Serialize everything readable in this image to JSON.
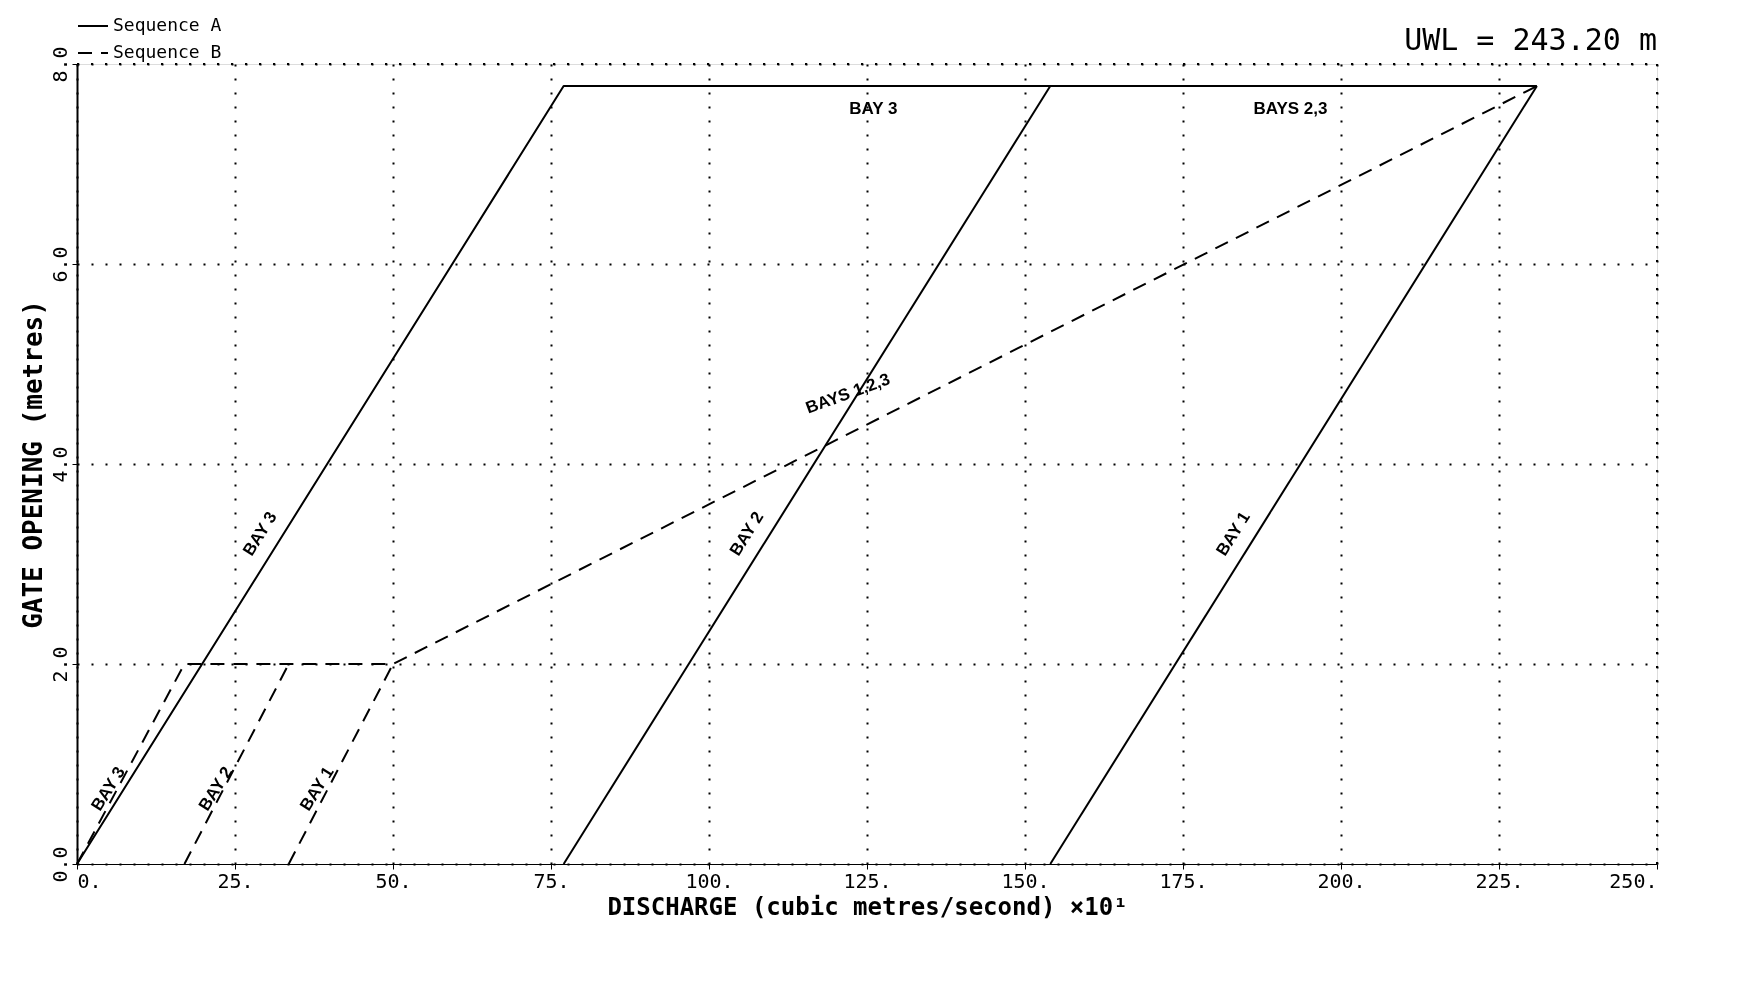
{
  "chart_data": {
    "type": "line",
    "xlabel": "DISCHARGE (cubic metres/second)  ×10¹",
    "ylabel": "GATE OPENING (metres)",
    "xlim": [
      0,
      250
    ],
    "ylim": [
      0,
      8
    ],
    "xticks": [
      {
        "value": 0,
        "label": "0."
      },
      {
        "value": 25,
        "label": "25."
      },
      {
        "value": 50,
        "label": "50."
      },
      {
        "value": 75,
        "label": "75."
      },
      {
        "value": 100,
        "label": "100."
      },
      {
        "value": 125,
        "label": "125."
      },
      {
        "value": 150,
        "label": "150."
      },
      {
        "value": 175,
        "label": "175."
      },
      {
        "value": 200,
        "label": "200."
      },
      {
        "value": 225,
        "label": "225."
      },
      {
        "value": 250,
        "label": "250."
      }
    ],
    "yticks": [
      {
        "value": 0,
        "label": "0.0"
      },
      {
        "value": 2,
        "label": "2.0"
      },
      {
        "value": 4,
        "label": "4.0"
      },
      {
        "value": 6,
        "label": "6.0"
      },
      {
        "value": 8,
        "label": "8.0"
      }
    ],
    "grid": true,
    "legend": "top",
    "marker": "none",
    "series": [
      {
        "name": "Sequence A",
        "color": "#000000",
        "line_style": "solid",
        "x": [
          0,
          77,
          231,
          null,
          77,
          154,
          null,
          154,
          231
        ],
        "values": [
          0,
          7.78,
          7.78,
          null,
          0,
          7.78,
          null,
          0,
          7.78
        ]
      },
      {
        "name": "Sequence B",
        "color": "#000000",
        "line_style": "dashed",
        "x": [
          0,
          17,
          50,
          231,
          null,
          17,
          33.5,
          null,
          33.5,
          50
        ],
        "values": [
          0,
          2,
          2,
          7.78,
          null,
          0,
          2,
          null,
          0,
          2
        ]
      }
    ],
    "annotations": [
      "UWL = 243.20 m",
      "BAY 3",
      "BAYS 2,3",
      "BAYS 1,2,3",
      "BAY 3",
      "BAY 2",
      "BAY 1",
      "BAY 3",
      "BAY 2",
      "BAY 1"
    ]
  }
}
